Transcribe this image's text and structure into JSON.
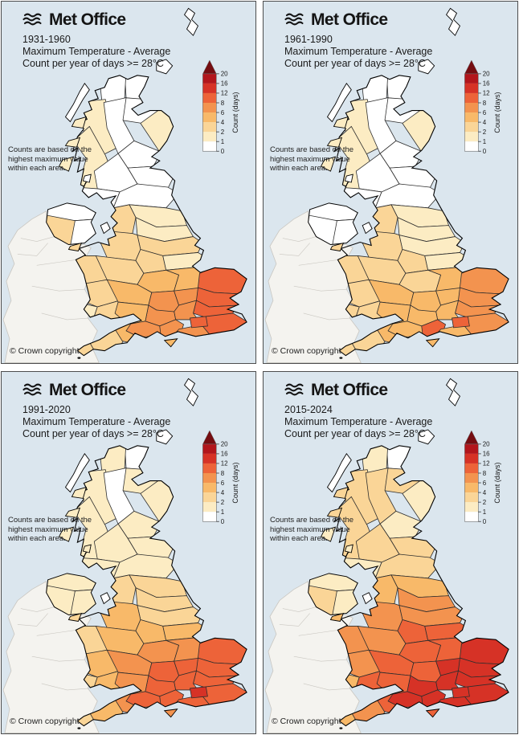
{
  "logo": {
    "text": "Met Office",
    "icon": "met-office-waves-icon"
  },
  "panels": [
    {
      "period": "1931-1960",
      "title_line1": "Maximum Temperature - Average",
      "title_line2": "Count per year of days >= 28°C",
      "notes": [
        "Counts are based on the",
        "highest maximum value",
        "within each area."
      ],
      "copyright": "© Crown copyright"
    },
    {
      "period": "1961-1990",
      "title_line1": "Maximum Temperature - Average",
      "title_line2": "Count per year of days >= 28°C",
      "notes": [
        "Counts are based on the",
        "highest maximum value",
        "within each area."
      ],
      "copyright": "© Crown copyright"
    },
    {
      "period": "1991-2020",
      "title_line1": "Maximum Temperature - Average",
      "title_line2": "Count per year of days >= 28°C",
      "notes": [
        "Counts are based on the",
        "highest maximum value",
        "within each area."
      ],
      "copyright": "© Crown copyright"
    },
    {
      "period": "2015-2024",
      "title_line1": "Maximum Temperature - Average",
      "title_line2": "Count per year of days >= 28°C",
      "notes": [
        "Counts are based on the",
        "highest maximum value",
        "within each area."
      ],
      "copyright": "© Crown copyright"
    }
  ],
  "legend": {
    "label": "Count (days)",
    "ticks": [
      "20",
      "16",
      "12",
      "8",
      "6",
      "4",
      "2",
      "1",
      "0"
    ]
  },
  "scale": {
    "bucket_labels": [
      "0-1",
      "1-2",
      "2-4",
      "4-6",
      "6-8",
      "8-12",
      "12-16",
      "16-20",
      ">20"
    ],
    "colors": [
      "#ffffff",
      "#fcecc3",
      "#fad597",
      "#f8b969",
      "#f3934f",
      "#ed6339",
      "#d63226",
      "#b2161c",
      "#750d11"
    ]
  },
  "map": {
    "sea_color": "#dbe6ee",
    "ireland_fill": "#f4f3ef",
    "ireland_stroke": "#c9c6c0",
    "region_stroke": "#2d2d2d",
    "coast_stroke": "#000000",
    "regions": {
      "caithness": [
        0,
        0,
        0,
        0
      ],
      "sutherland": [
        0,
        0,
        1,
        1
      ],
      "wester-ross": [
        1,
        1,
        1,
        2
      ],
      "moray": [
        0,
        0,
        1,
        2
      ],
      "aberdeenshire": [
        1,
        1,
        1,
        1
      ],
      "highlands-central": [
        0,
        0,
        0,
        2
      ],
      "tayside": [
        0,
        0,
        1,
        1
      ],
      "argyll": [
        1,
        1,
        1,
        2
      ],
      "fife-lothian": [
        0,
        0,
        1,
        2
      ],
      "glasgow": [
        0,
        0,
        1,
        2
      ],
      "galloway": [
        0,
        0,
        1,
        1
      ],
      "borders": [
        0,
        0,
        1,
        2
      ],
      "northumberland": [
        1,
        1,
        2,
        3
      ],
      "cumbria": [
        2,
        2,
        2,
        3
      ],
      "durham": [
        1,
        1,
        2,
        4
      ],
      "yorkshire-north": [
        2,
        1,
        2,
        4
      ],
      "lancashire": [
        2,
        2,
        3,
        4
      ],
      "yorkshire-west": [
        2,
        2,
        3,
        5
      ],
      "yorkshire-east": [
        1,
        1,
        3,
        5
      ],
      "merseyside-cheshire": [
        2,
        2,
        3,
        4
      ],
      "derbyshire-notts": [
        3,
        2,
        4,
        5
      ],
      "lincolnshire": [
        3,
        3,
        4,
        5
      ],
      "wales-north": [
        2,
        2,
        2,
        4
      ],
      "wales-mid": [
        2,
        2,
        3,
        4
      ],
      "pembrokeshire": [
        1,
        2,
        2,
        3
      ],
      "wales-south": [
        2,
        2,
        3,
        5
      ],
      "shropshire-staffs": [
        3,
        3,
        4,
        5
      ],
      "east-midlands": [
        4,
        3,
        5,
        5
      ],
      "cambridgeshire": [
        4,
        3,
        5,
        6
      ],
      "norfolk": [
        5,
        4,
        5,
        6
      ],
      "suffolk": [
        5,
        4,
        5,
        6
      ],
      "essex": [
        5,
        4,
        5,
        6
      ],
      "glos-worcester": [
        3,
        3,
        4,
        5
      ],
      "oxfordshire": [
        4,
        3,
        5,
        6
      ],
      "beds-herts": [
        4,
        3,
        5,
        6
      ],
      "london": [
        5,
        5,
        6,
        6
      ],
      "kent": [
        5,
        4,
        5,
        6
      ],
      "sussex": [
        4,
        3,
        5,
        6
      ],
      "hampshire": [
        4,
        5,
        5,
        6
      ],
      "wiltshire-berks": [
        4,
        3,
        5,
        6
      ],
      "somerset-dorset": [
        3,
        3,
        4,
        5
      ],
      "devon": [
        2,
        2,
        3,
        4
      ],
      "cornwall": [
        2,
        2,
        2,
        3
      ],
      "ni-north": [
        0,
        0,
        1,
        1
      ],
      "ni-west": [
        2,
        0,
        1,
        2
      ],
      "ni-east": [
        0,
        0,
        1,
        1
      ],
      "shetland": [
        0,
        0,
        0,
        0
      ],
      "orkney": [
        0,
        0,
        0,
        0
      ],
      "hebrides": [
        0,
        0,
        0,
        0
      ],
      "skye": [
        1,
        1,
        1,
        2
      ],
      "mull": [
        1,
        1,
        1,
        2
      ],
      "islay": [
        1,
        1,
        1,
        1
      ],
      "arran": [
        0,
        0,
        1,
        1
      ],
      "isle-of-man": [
        0,
        0,
        0,
        0
      ],
      "anglesey": [
        2,
        2,
        2,
        3
      ],
      "wight": [
        3,
        3,
        4,
        5
      ]
    }
  }
}
